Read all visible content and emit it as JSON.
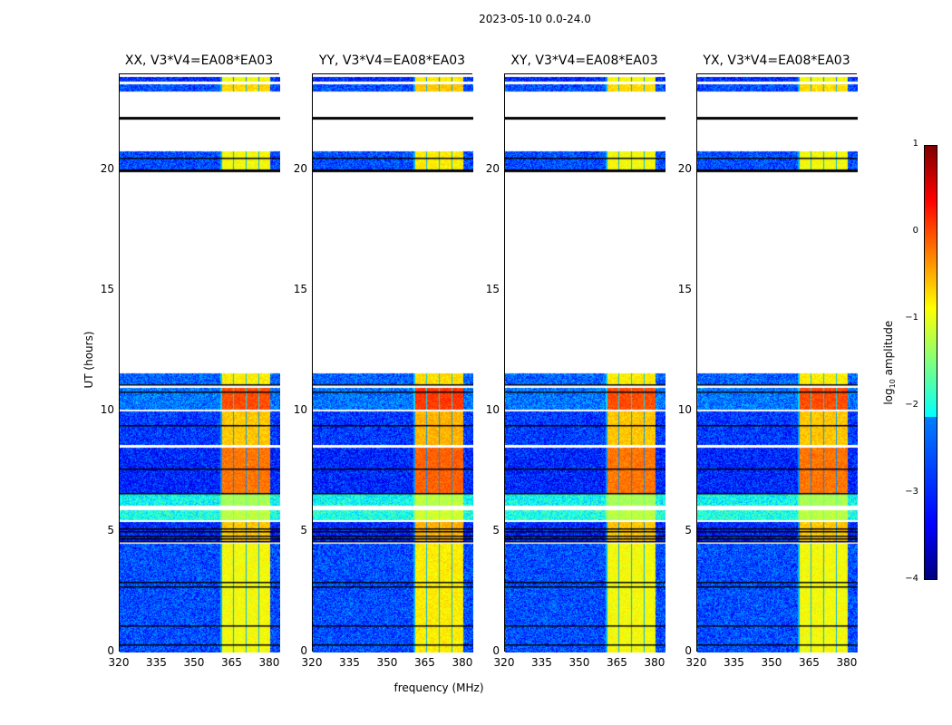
{
  "suptitle": "2023-05-10 0.0-24.0",
  "chart_data": {
    "type": "heatmap",
    "panels": [
      {
        "title": "XX, V3*V4=EA08*EA03"
      },
      {
        "title": "YY, V3*V4=EA08*EA03"
      },
      {
        "title": "XY, V3*V4=EA08*EA03"
      },
      {
        "title": "YX, V3*V4=EA08*EA03"
      }
    ],
    "xlabel": "frequency (MHz)",
    "ylabel": "UT (hours)",
    "xlim": [
      320,
      384
    ],
    "ylim": [
      0,
      24
    ],
    "xticks": [
      "320",
      "335",
      "350",
      "365",
      "380"
    ],
    "xtick_values": [
      320,
      335,
      350,
      365,
      380
    ],
    "yticks": [
      "0",
      "5",
      "10",
      "15",
      "20"
    ],
    "ytick_values": [
      0,
      5,
      10,
      15,
      20
    ],
    "rfi_band_mhz": [
      360,
      380
    ],
    "data_segments_hours": [
      {
        "start": 0.0,
        "end": 4.5,
        "level": -3.0,
        "rfi_level": -0.9
      },
      {
        "start": 4.6,
        "end": 5.4,
        "level": -3.2,
        "rfi_level": -0.6
      },
      {
        "start": 5.5,
        "end": 5.9,
        "level": -2.0,
        "rfi_level": -1.2
      },
      {
        "start": 6.1,
        "end": 6.6,
        "level": -2.1,
        "rfi_level": -1.3
      },
      {
        "start": 6.6,
        "end": 8.5,
        "level": -3.2,
        "rfi_level": -0.2
      },
      {
        "start": 8.6,
        "end": 10.0,
        "level": -3.1,
        "rfi_level": -0.6
      },
      {
        "start": 10.1,
        "end": 11.0,
        "level": -2.8,
        "rfi_level": 0.0
      },
      {
        "start": 11.1,
        "end": 11.6,
        "level": -2.9,
        "rfi_level": -0.8
      },
      {
        "start": 20.0,
        "end": 20.8,
        "level": -3.0,
        "rfi_level": -0.9
      },
      {
        "start": 23.3,
        "end": 23.6,
        "level": -3.0,
        "rfi_level": -0.7
      },
      {
        "start": 23.7,
        "end": 23.9,
        "level": -3.2,
        "rfi_level": -0.9
      }
    ],
    "black_lines_hours": [
      0.3,
      1.1,
      2.7,
      2.9,
      4.6,
      4.7,
      4.8,
      5.0,
      5.1,
      6.6,
      7.6,
      9.4,
      10.8,
      11.1,
      20.0,
      20.5,
      22.2
    ],
    "colorbar": {
      "label": "log10 amplitude",
      "ticks": [
        "1",
        "0",
        "−1",
        "−2",
        "−3",
        "−4"
      ],
      "tick_values": [
        1,
        0,
        -1,
        -2,
        -3,
        -4
      ],
      "range": [
        -4,
        1
      ],
      "colormap": "jet"
    }
  }
}
